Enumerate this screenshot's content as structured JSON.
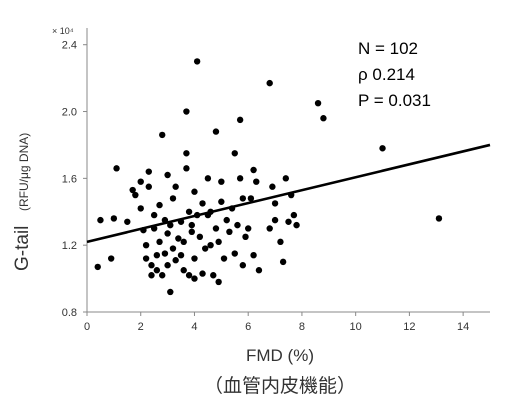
{
  "chart_data": {
    "type": "scatter",
    "xlabel": "FMD (%)",
    "xlabel_sub": "（血管内皮機能）",
    "ylabel": "G-tail",
    "ylabel_unit": "(RFU/μg DNA)",
    "y_scale_label": "× 10⁴",
    "xlim": [
      0,
      15
    ],
    "ylim": [
      0.8,
      2.5
    ],
    "xticks": [
      "0",
      "2",
      "4",
      "6",
      "8",
      "10",
      "12",
      "14"
    ],
    "yticks": [
      "0.8",
      "1.2",
      "1.6",
      "2.0",
      "2.4"
    ],
    "annotations": [
      "N = 102",
      "ρ 0.214",
      "P = 0.031"
    ],
    "grid": false,
    "trendline": {
      "x": [
        0,
        15
      ],
      "y": [
        1.22,
        1.8
      ]
    },
    "points": [
      {
        "x": 0.4,
        "y": 1.07
      },
      {
        "x": 0.5,
        "y": 1.35
      },
      {
        "x": 0.9,
        "y": 1.12
      },
      {
        "x": 1.0,
        "y": 1.36
      },
      {
        "x": 1.1,
        "y": 1.66
      },
      {
        "x": 1.5,
        "y": 1.34
      },
      {
        "x": 1.7,
        "y": 1.53
      },
      {
        "x": 1.8,
        "y": 1.5
      },
      {
        "x": 2.0,
        "y": 1.58
      },
      {
        "x": 2.0,
        "y": 1.42
      },
      {
        "x": 2.1,
        "y": 1.29
      },
      {
        "x": 2.2,
        "y": 1.2
      },
      {
        "x": 2.2,
        "y": 1.12
      },
      {
        "x": 2.3,
        "y": 1.55
      },
      {
        "x": 2.3,
        "y": 1.64
      },
      {
        "x": 2.4,
        "y": 1.02
      },
      {
        "x": 2.4,
        "y": 1.08
      },
      {
        "x": 2.5,
        "y": 1.3
      },
      {
        "x": 2.5,
        "y": 1.38
      },
      {
        "x": 2.6,
        "y": 1.14
      },
      {
        "x": 2.6,
        "y": 1.05
      },
      {
        "x": 2.7,
        "y": 1.44
      },
      {
        "x": 2.7,
        "y": 1.22
      },
      {
        "x": 2.8,
        "y": 1.86
      },
      {
        "x": 2.8,
        "y": 1.02
      },
      {
        "x": 2.9,
        "y": 1.35
      },
      {
        "x": 2.9,
        "y": 1.15
      },
      {
        "x": 3.0,
        "y": 1.62
      },
      {
        "x": 3.0,
        "y": 1.27
      },
      {
        "x": 3.0,
        "y": 1.08
      },
      {
        "x": 3.1,
        "y": 1.32
      },
      {
        "x": 3.1,
        "y": 0.92
      },
      {
        "x": 3.2,
        "y": 1.48
      },
      {
        "x": 3.2,
        "y": 1.18
      },
      {
        "x": 3.3,
        "y": 1.11
      },
      {
        "x": 3.3,
        "y": 1.55
      },
      {
        "x": 3.4,
        "y": 1.24
      },
      {
        "x": 3.5,
        "y": 1.34
      },
      {
        "x": 3.5,
        "y": 1.14
      },
      {
        "x": 3.6,
        "y": 1.05
      },
      {
        "x": 3.6,
        "y": 1.22
      },
      {
        "x": 3.7,
        "y": 1.66
      },
      {
        "x": 3.7,
        "y": 1.75
      },
      {
        "x": 3.7,
        "y": 2.0
      },
      {
        "x": 3.8,
        "y": 1.02
      },
      {
        "x": 3.8,
        "y": 1.4
      },
      {
        "x": 3.9,
        "y": 1.28
      },
      {
        "x": 3.9,
        "y": 1.32
      },
      {
        "x": 4.0,
        "y": 1.52
      },
      {
        "x": 4.0,
        "y": 1.12
      },
      {
        "x": 4.0,
        "y": 1.0
      },
      {
        "x": 4.1,
        "y": 2.3
      },
      {
        "x": 4.1,
        "y": 1.38
      },
      {
        "x": 4.2,
        "y": 1.25
      },
      {
        "x": 4.3,
        "y": 1.45
      },
      {
        "x": 4.3,
        "y": 1.03
      },
      {
        "x": 4.4,
        "y": 1.18
      },
      {
        "x": 4.5,
        "y": 1.6
      },
      {
        "x": 4.5,
        "y": 1.38
      },
      {
        "x": 4.6,
        "y": 1.4
      },
      {
        "x": 4.6,
        "y": 1.2
      },
      {
        "x": 4.7,
        "y": 1.02
      },
      {
        "x": 4.8,
        "y": 1.88
      },
      {
        "x": 4.8,
        "y": 1.3
      },
      {
        "x": 4.9,
        "y": 1.22
      },
      {
        "x": 4.9,
        "y": 0.98
      },
      {
        "x": 5.0,
        "y": 1.58
      },
      {
        "x": 5.0,
        "y": 1.46
      },
      {
        "x": 5.1,
        "y": 1.12
      },
      {
        "x": 5.2,
        "y": 1.35
      },
      {
        "x": 5.3,
        "y": 1.28
      },
      {
        "x": 5.4,
        "y": 1.42
      },
      {
        "x": 5.5,
        "y": 1.75
      },
      {
        "x": 5.5,
        "y": 1.15
      },
      {
        "x": 5.6,
        "y": 1.32
      },
      {
        "x": 5.7,
        "y": 1.95
      },
      {
        "x": 5.7,
        "y": 1.6
      },
      {
        "x": 5.8,
        "y": 1.48
      },
      {
        "x": 5.8,
        "y": 1.08
      },
      {
        "x": 5.9,
        "y": 1.25
      },
      {
        "x": 6.0,
        "y": 1.3
      },
      {
        "x": 6.1,
        "y": 1.48
      },
      {
        "x": 6.2,
        "y": 1.65
      },
      {
        "x": 6.2,
        "y": 1.14
      },
      {
        "x": 6.3,
        "y": 1.58
      },
      {
        "x": 6.4,
        "y": 1.05
      },
      {
        "x": 6.8,
        "y": 2.17
      },
      {
        "x": 6.8,
        "y": 1.3
      },
      {
        "x": 6.9,
        "y": 1.55
      },
      {
        "x": 7.0,
        "y": 1.45
      },
      {
        "x": 7.0,
        "y": 1.35
      },
      {
        "x": 7.2,
        "y": 1.22
      },
      {
        "x": 7.3,
        "y": 1.1
      },
      {
        "x": 7.4,
        "y": 1.6
      },
      {
        "x": 7.5,
        "y": 1.34
      },
      {
        "x": 7.6,
        "y": 1.5
      },
      {
        "x": 7.7,
        "y": 1.38
      },
      {
        "x": 7.8,
        "y": 1.32
      },
      {
        "x": 8.6,
        "y": 2.05
      },
      {
        "x": 8.8,
        "y": 1.96
      },
      {
        "x": 11.0,
        "y": 1.78
      },
      {
        "x": 13.1,
        "y": 1.36
      }
    ]
  }
}
